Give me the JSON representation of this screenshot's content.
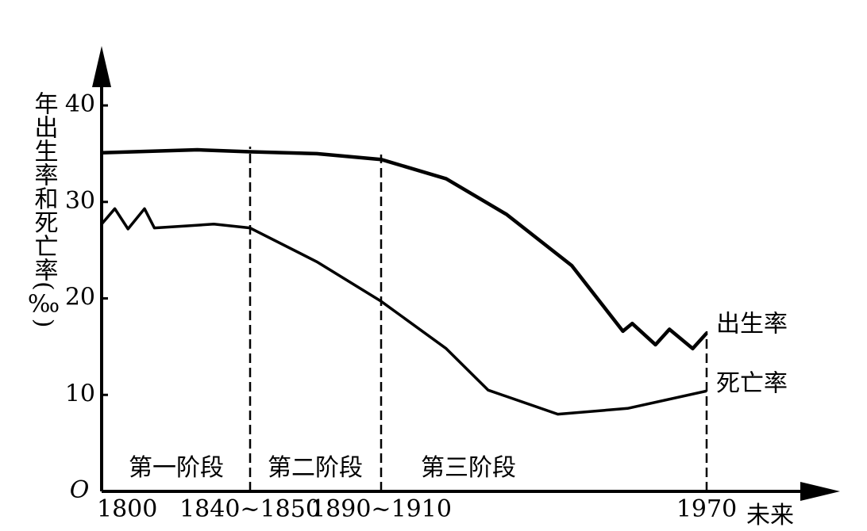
{
  "chart_data": {
    "type": "line",
    "y_label": "年出生率和死亡率(‰)",
    "x_label": "未来",
    "origin_label": "O",
    "series": [
      {
        "name": "出生率",
        "color": "#000000",
        "x": [
          1800,
          1829,
          1845,
          1873,
          1900,
          1914,
          1927,
          1941,
          1952,
          1954,
          1959,
          1962,
          1967,
          1970
        ],
        "values": [
          35.1,
          35.4,
          35.2,
          35.0,
          34.4,
          32.4,
          28.7,
          23.4,
          16.6,
          17.4,
          15.2,
          16.8,
          14.8,
          16.4
        ]
      },
      {
        "name": "死亡率",
        "color": "#000000",
        "x": [
          1800,
          1804,
          1808,
          1813,
          1816,
          1825,
          1834,
          1845,
          1873,
          1900,
          1914,
          1923,
          1938,
          1953,
          1970
        ],
        "values": [
          27.7,
          29.3,
          27.2,
          29.3,
          27.3,
          27.5,
          27.7,
          27.3,
          23.8,
          19.7,
          14.8,
          10.5,
          8.0,
          8.6,
          10.4
        ]
      }
    ],
    "annotations": [
      "第一阶段",
      "第二阶段",
      "第三阶段"
    ],
    "xlim": [
      1800,
      1995
    ],
    "xticks": [
      1800,
      {
        "value": 1845,
        "label": "1840~1850"
      },
      {
        "value": 1900,
        "label": "1890~1910"
      },
      1970
    ],
    "ylim": [
      0,
      46
    ],
    "yticks": [
      10,
      20,
      30,
      40
    ],
    "grid": false
  }
}
